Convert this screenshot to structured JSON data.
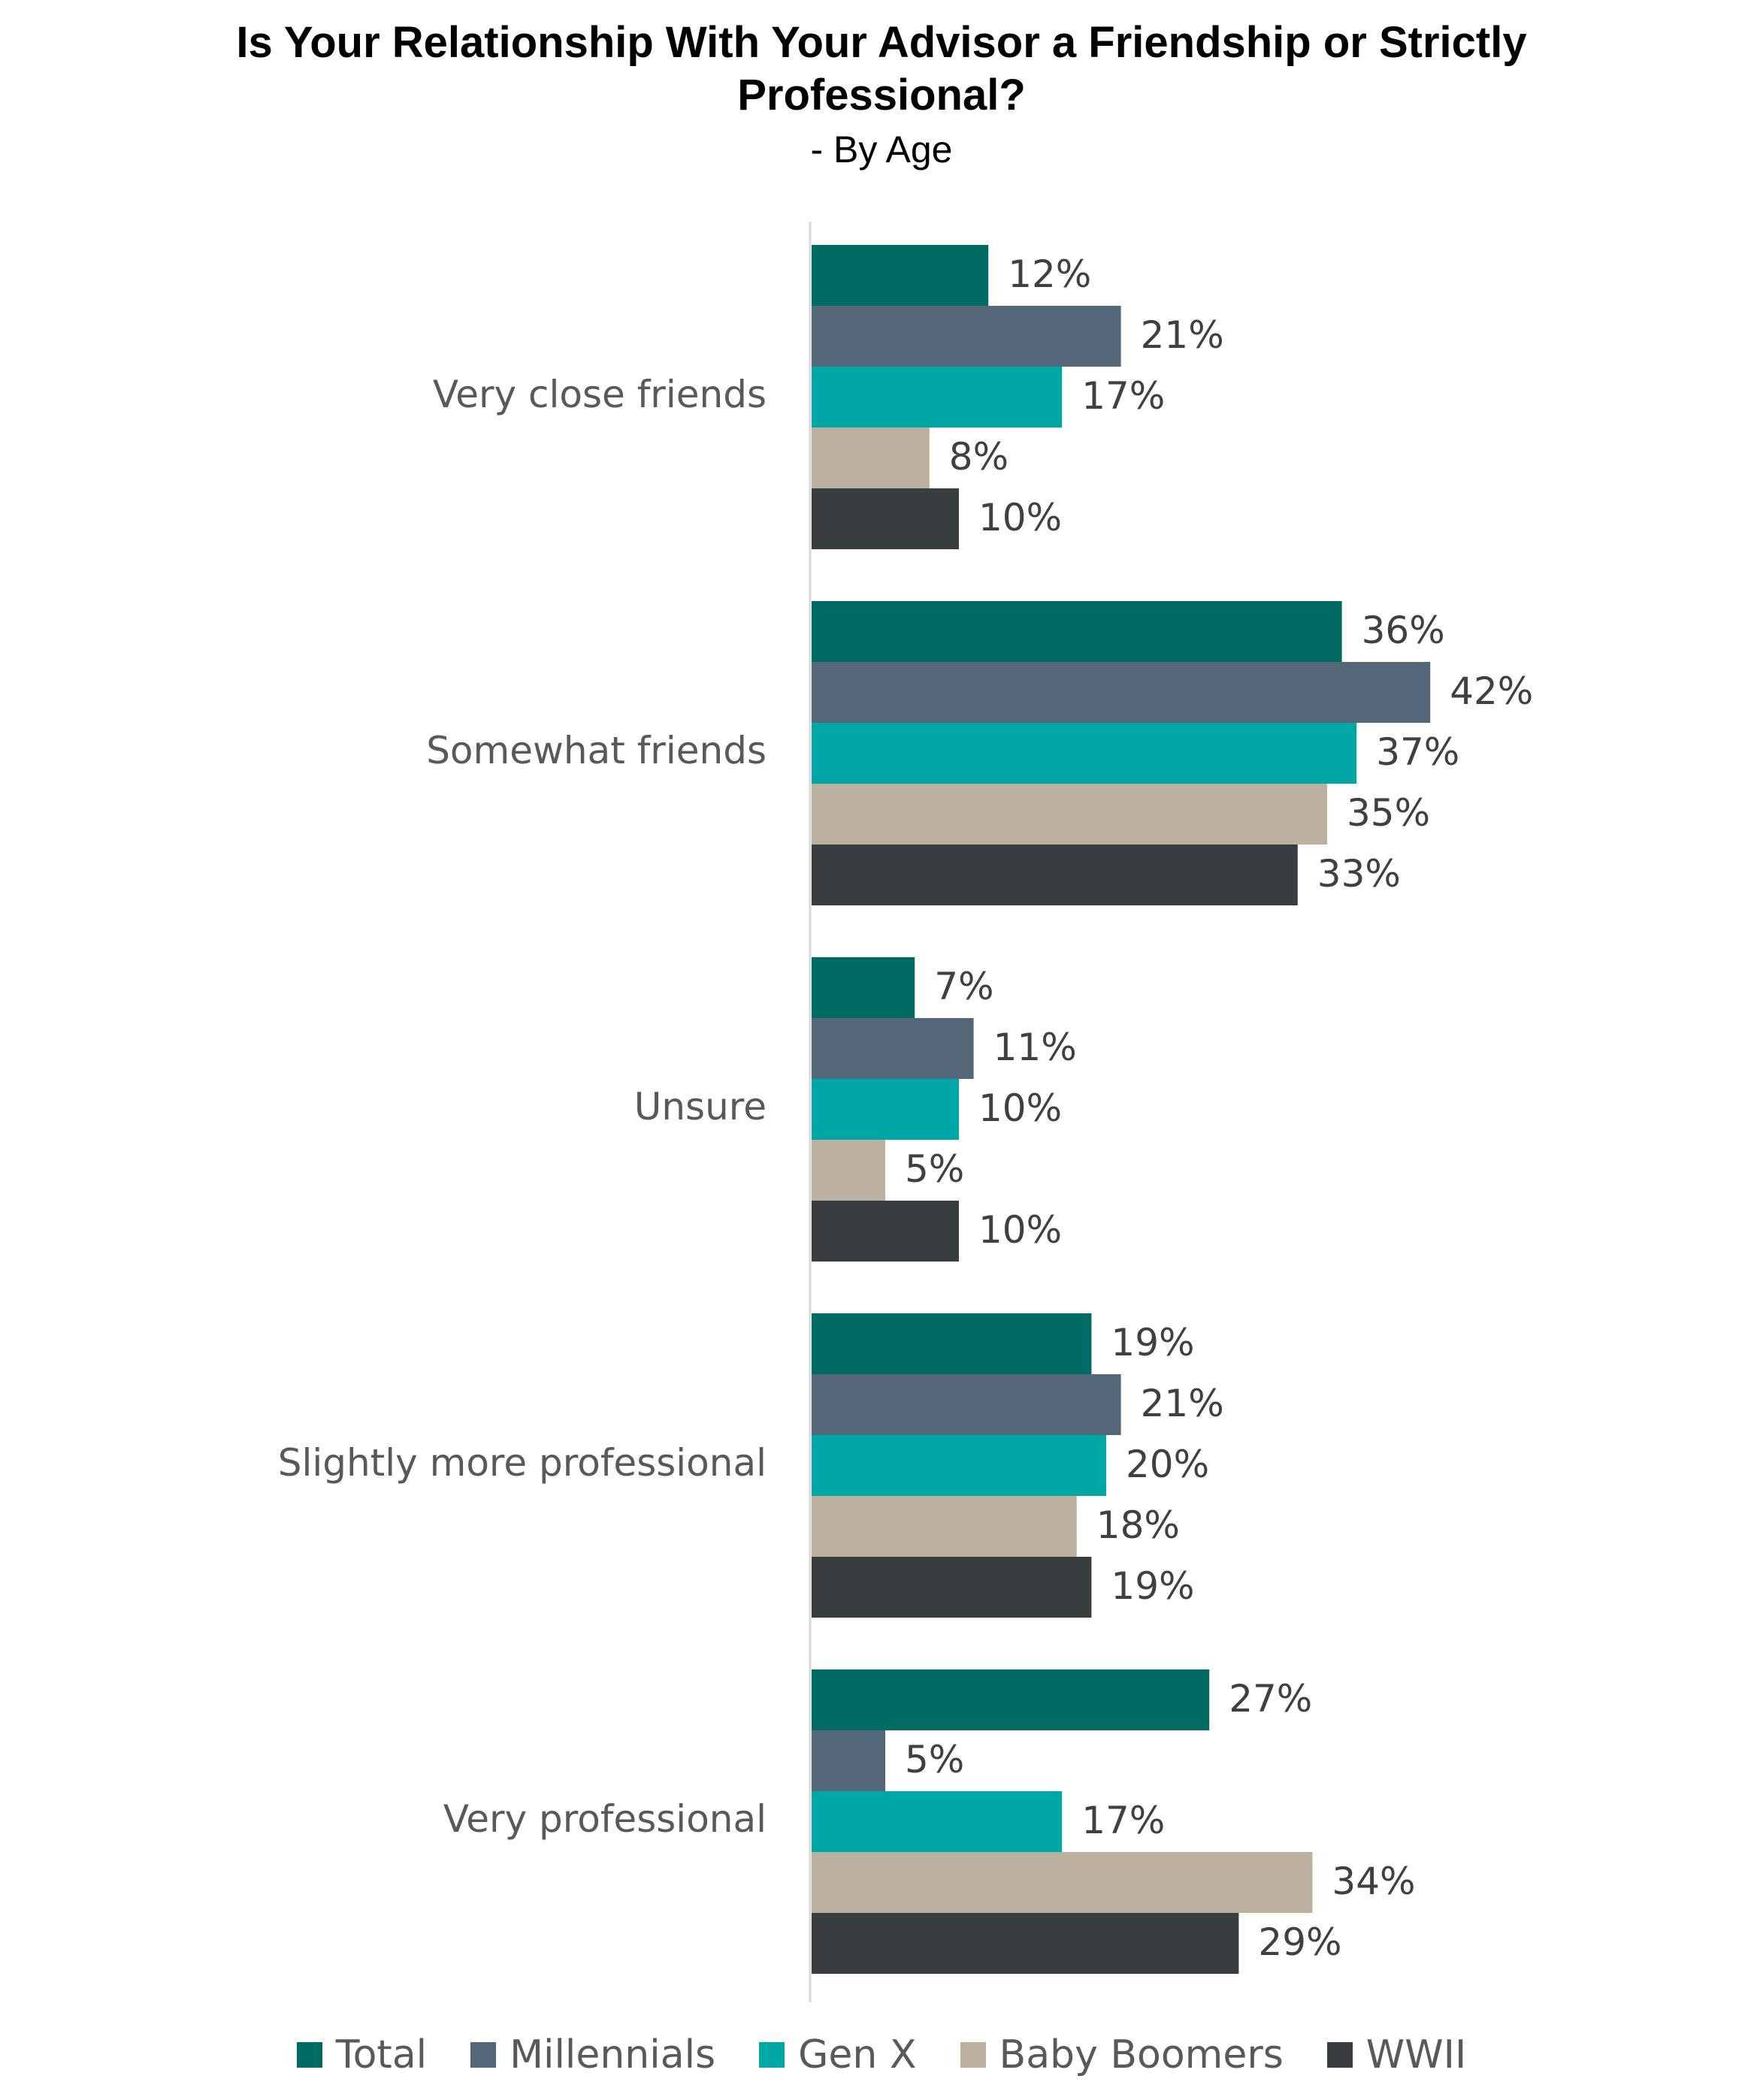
{
  "chart_data": {
    "type": "bar",
    "orientation": "horizontal",
    "title": "Is Your Relationship With Your Advisor a Friendship or Strictly Professional?",
    "title_lines": [
      "Is Your Relationship With Your Advisor a Friendship or Strictly",
      "Professional?"
    ],
    "subtitle": "- By Age",
    "categories": [
      "Very close friends",
      "Somewhat friends",
      "Unsure",
      "Slightly more professional",
      "Very professional"
    ],
    "series": [
      {
        "name": "Total",
        "color": "#006b63",
        "values": [
          12,
          36,
          7,
          19,
          27
        ]
      },
      {
        "name": "Millennials",
        "color": "#546778",
        "values": [
          21,
          42,
          11,
          21,
          5
        ]
      },
      {
        "name": "Gen X",
        "color": "#00a7a5",
        "values": [
          17,
          37,
          10,
          20,
          17
        ]
      },
      {
        "name": "Baby Boomers",
        "color": "#bcb09f",
        "values": [
          8,
          35,
          5,
          18,
          34
        ]
      },
      {
        "name": "WWII",
        "color": "#383d40",
        "values": [
          10,
          33,
          10,
          19,
          29
        ]
      }
    ],
    "value_suffix": "%",
    "xlim": [
      0,
      42
    ],
    "grid": false,
    "legend_position": "bottom"
  }
}
